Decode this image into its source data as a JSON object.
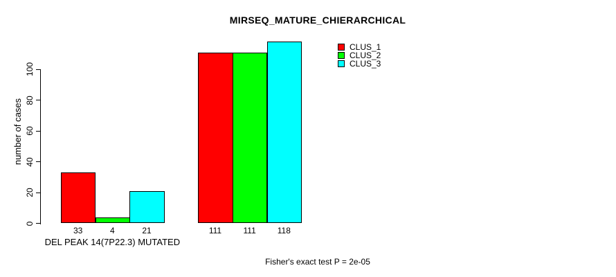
{
  "chart_data": {
    "type": "bar",
    "title": "MIRSEQ_MATURE_CHIERARCHICAL",
    "ylabel": "number of cases",
    "xlabel": "",
    "ylim": [
      0,
      100
    ],
    "yticks": [
      0,
      20,
      40,
      60,
      80,
      100
    ],
    "categories": [
      "DEL PEAK 14(7P22.3) MUTATED",
      ""
    ],
    "series": [
      {
        "name": "CLUS_1",
        "color": "#ff0000",
        "values": [
          33,
          111
        ]
      },
      {
        "name": "CLUS_2",
        "color": "#00ff00",
        "values": [
          4,
          111
        ]
      },
      {
        "name": "CLUS_3",
        "color": "#00ffff",
        "values": [
          21,
          118
        ]
      }
    ],
    "bar_value_labels": [
      [
        "33",
        "4",
        "21"
      ],
      [
        "111",
        "111",
        "118"
      ]
    ],
    "legend_position": "top-right",
    "annotation": "Fisher's exact test P = 2e-05",
    "grid": false,
    "background": "#ffffff",
    "axis_color": "#000000"
  }
}
